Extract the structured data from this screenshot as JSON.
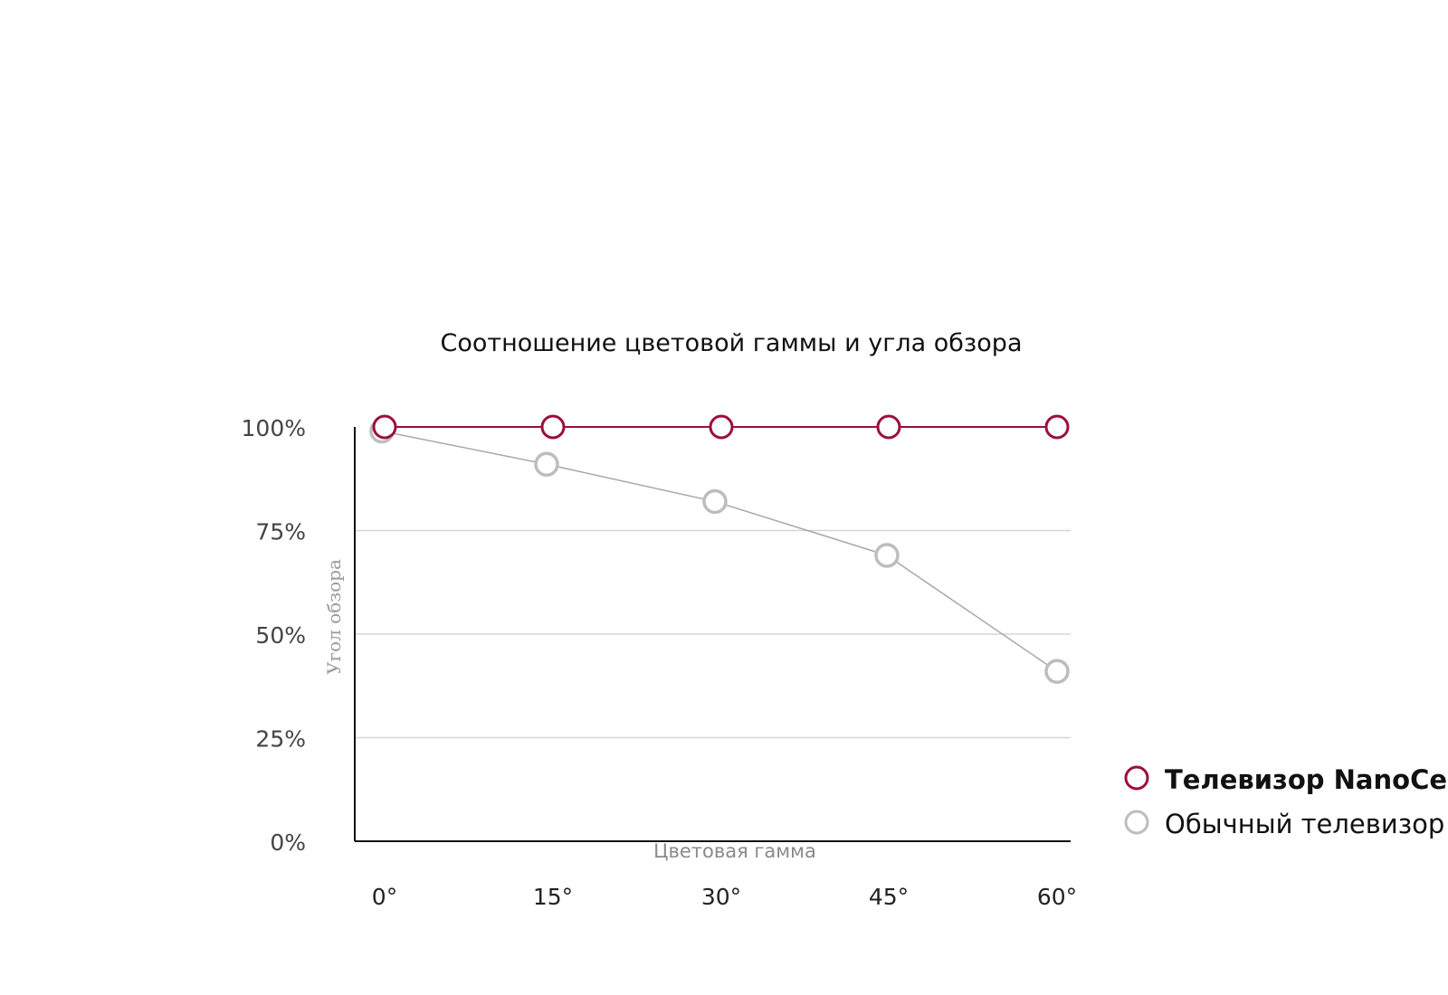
{
  "chart_data": {
    "type": "line",
    "title": "Соотношение цветовой гаммы и угла обзора",
    "xlabel": "Цветовая гамма",
    "ylabel": "Угол обзора",
    "categories": [
      "0°",
      "15°",
      "30°",
      "45°",
      "60°"
    ],
    "y_ticks": [
      "0%",
      "25%",
      "50%",
      "75%",
      "100%"
    ],
    "ylim": [
      0,
      100
    ],
    "grid": true,
    "legend_position": "right",
    "series": [
      {
        "name": "Телевизор NanoCell",
        "values": [
          100,
          100,
          100,
          100,
          100
        ],
        "color": "#9a0f3e"
      },
      {
        "name": "Обычный телевизор",
        "values": [
          99,
          91,
          82,
          69,
          41
        ],
        "color": "#bdbdbd"
      }
    ]
  }
}
